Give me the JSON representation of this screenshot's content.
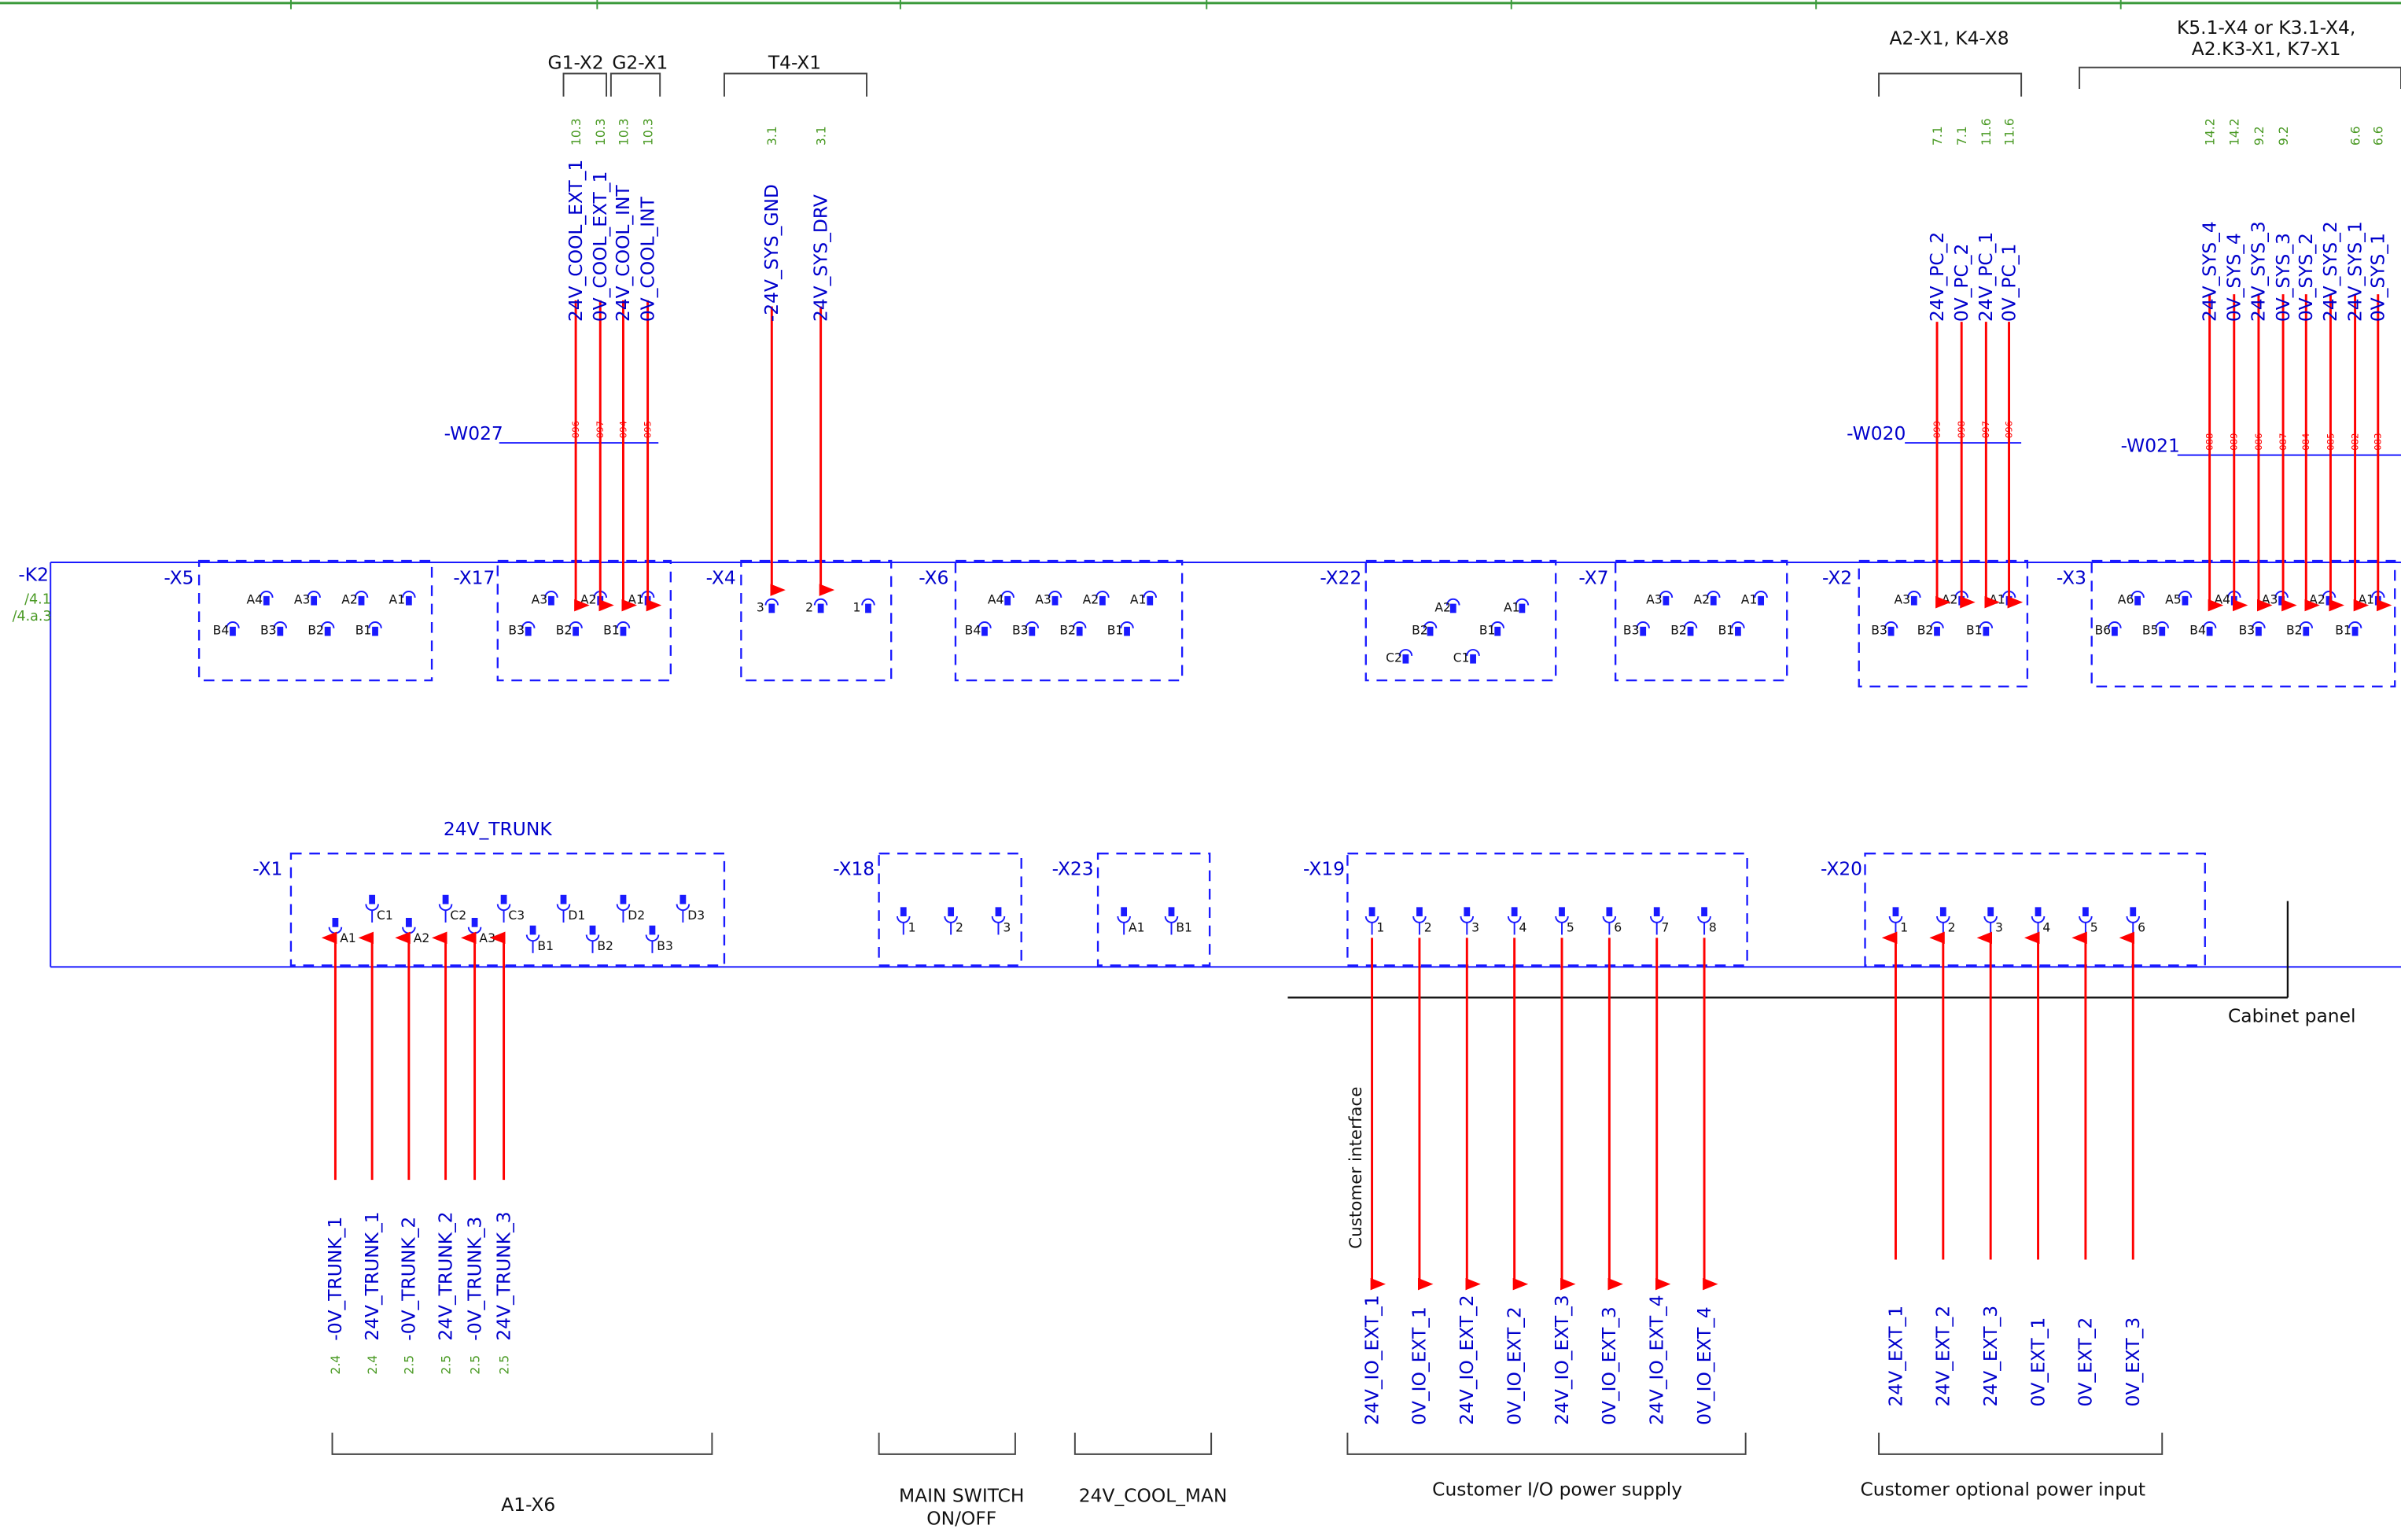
{
  "colors": {
    "wire": "#ff0000",
    "bus": "#1a1aff",
    "device_label": "#0000cc",
    "reference": "#4a9a24",
    "group_text": "#111111",
    "grid": "#3a9a3a"
  },
  "strip": {
    "name": "-K2",
    "refs": [
      "/4.1",
      "/4.a.3"
    ]
  },
  "top_groups": [
    {
      "label": "G1-X2"
    },
    {
      "label": "G2-X1"
    },
    {
      "label": "T4-X1"
    },
    {
      "label": "A2-X1, K4-X8"
    },
    {
      "label_line1": "K5.1-X4 or K3.1-X4,",
      "label_line2": "A2.K3-X1, K7-X1"
    }
  ],
  "top_signals": [
    {
      "name": "24V_COOL_EXT_1",
      "ref": "10.3"
    },
    {
      "name": "0V_COOL_EXT_1",
      "ref": "10.3"
    },
    {
      "name": "24V_COOL_INT",
      "ref": "10.3"
    },
    {
      "name": "0V_COOL_INT",
      "ref": "10.3"
    },
    {
      "name": "-24V_SYS_GND",
      "ref": "3.1"
    },
    {
      "name": "24V_SYS_DRV",
      "ref": "3.1"
    },
    {
      "name": "24V_PC_2",
      "ref": "7.1"
    },
    {
      "name": "0V_PC_2",
      "ref": "7.1"
    },
    {
      "name": "24V_PC_1",
      "ref": "11.6"
    },
    {
      "name": "0V_PC_1",
      "ref": "11.6"
    },
    {
      "name": "24V_SYS_4",
      "ref": "14.2"
    },
    {
      "name": "0V_SYS_4",
      "ref": "14.2"
    },
    {
      "name": "24V_SYS_3",
      "ref": "9.2"
    },
    {
      "name": "0V_SYS_3",
      "ref": "9.2"
    },
    {
      "name": "0V_SYS_2",
      "ref": ""
    },
    {
      "name": "24V_SYS_2",
      "ref": ""
    },
    {
      "name": "24V_SYS_1",
      "ref": "6.6"
    },
    {
      "name": "0V_SYS_1",
      "ref": "6.6"
    }
  ],
  "cables": [
    {
      "name": "-W027",
      "cores": [
        "096",
        "097",
        "094",
        "095"
      ]
    },
    {
      "name": "-W020",
      "cores": [
        "099",
        "098",
        "097",
        "096"
      ]
    },
    {
      "name": "-W021",
      "cores": [
        "088",
        "089",
        "086",
        "087",
        "084",
        "085",
        "082",
        "083"
      ]
    }
  ],
  "upper_connectors": [
    {
      "name": "-X5",
      "pins": [
        "A4",
        "A3",
        "A2",
        "A1",
        "B4",
        "B3",
        "B2",
        "B1"
      ]
    },
    {
      "name": "-X17",
      "pins": [
        "A3",
        "A2",
        "A1",
        "B3",
        "B2",
        "B1"
      ]
    },
    {
      "name": "-X4",
      "pins": [
        "3",
        "2",
        "1"
      ]
    },
    {
      "name": "-X6",
      "pins": [
        "A4",
        "A3",
        "A2",
        "A1",
        "B4",
        "B3",
        "B2",
        "B1"
      ]
    },
    {
      "name": "-X22",
      "pins": [
        "A2",
        "A1",
        "B2",
        "B1",
        "C2",
        "C1"
      ]
    },
    {
      "name": "-X7",
      "pins": [
        "A3",
        "A2",
        "A1",
        "B3",
        "B2",
        "B1"
      ]
    },
    {
      "name": "-X2",
      "pins": [
        "A3",
        "A2",
        "A1",
        "B3",
        "B2",
        "B1"
      ]
    },
    {
      "name": "-X3",
      "pins": [
        "A6",
        "A5",
        "A4",
        "A3",
        "A2",
        "A1",
        "B6",
        "B5",
        "B4",
        "B3",
        "B2",
        "B1"
      ]
    }
  ],
  "lower_connectors": [
    {
      "name": "-X1",
      "title": "24V_TRUNK",
      "pins": [
        "A1",
        "C1",
        "A2",
        "C2",
        "A3",
        "C3",
        "B1",
        "D1",
        "B2",
        "D2",
        "B3",
        "D3"
      ]
    },
    {
      "name": "-X18",
      "pins": [
        "1",
        "2",
        "3"
      ]
    },
    {
      "name": "-X23",
      "pins": [
        "A1",
        "B1"
      ]
    },
    {
      "name": "-X19",
      "pins": [
        "1",
        "2",
        "3",
        "4",
        "5",
        "6",
        "7",
        "8"
      ]
    },
    {
      "name": "-X20",
      "pins": [
        "1",
        "2",
        "3",
        "4",
        "5",
        "6"
      ]
    }
  ],
  "trunk_signals": [
    {
      "name": "-0V_TRUNK_1",
      "ref": "2.4"
    },
    {
      "name": "24V_TRUNK_1",
      "ref": "2.4"
    },
    {
      "name": "-0V_TRUNK_2",
      "ref": "2.5"
    },
    {
      "name": "24V_TRUNK_2",
      "ref": "2.5"
    },
    {
      "name": "-0V_TRUNK_3",
      "ref": "2.5"
    },
    {
      "name": "24V_TRUNK_3",
      "ref": "2.5"
    }
  ],
  "io_signals": [
    "24V_IO_EXT_1",
    "0V_IO_EXT_1",
    "24V_IO_EXT_2",
    "0V_IO_EXT_2",
    "24V_IO_EXT_3",
    "0V_IO_EXT_3",
    "24V_IO_EXT_4",
    "0V_IO_EXT_4"
  ],
  "optional_signals": [
    "24V_EXT_1",
    "24V_EXT_2",
    "24V_EXT_3",
    "0V_EXT_1",
    "0V_EXT_2",
    "0V_EXT_3"
  ],
  "cabinet_panel": "Cabinet panel",
  "customer_interface": "Customer interface",
  "bottom_groups": [
    {
      "label": "A1-X6"
    },
    {
      "label_line1": "MAIN SWITCH",
      "label_line2": "ON/OFF"
    },
    {
      "label": "24V_COOL_MAN"
    },
    {
      "label": "Customer I/O power supply"
    },
    {
      "label": "Customer optional power input"
    }
  ]
}
